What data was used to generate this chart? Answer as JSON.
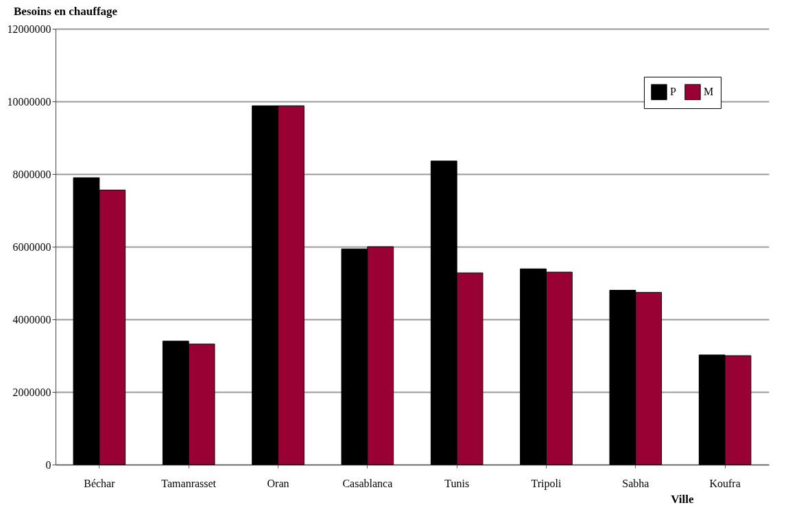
{
  "chart_data": {
    "type": "bar",
    "title": "Besoins en chauffage",
    "xlabel": "Ville",
    "categories": [
      "Béchar",
      "Tamanrasset",
      "Oran",
      "Casablanca",
      "Tunis",
      "Tripoli",
      "Sabha",
      "Koufra"
    ],
    "series": [
      {
        "name": "P",
        "color": "#000000",
        "values": [
          7900000,
          3400000,
          9880000,
          5940000,
          8360000,
          5390000,
          4800000,
          3020000
        ]
      },
      {
        "name": "M",
        "color": "#990033",
        "values": [
          7560000,
          3320000,
          9880000,
          6000000,
          5280000,
          5300000,
          4740000,
          3000000
        ]
      }
    ],
    "ylim": [
      0,
      12000000
    ],
    "yticks": [
      0,
      2000000,
      4000000,
      6000000,
      8000000,
      10000000,
      12000000
    ],
    "grid": "y",
    "legend": "top right"
  }
}
